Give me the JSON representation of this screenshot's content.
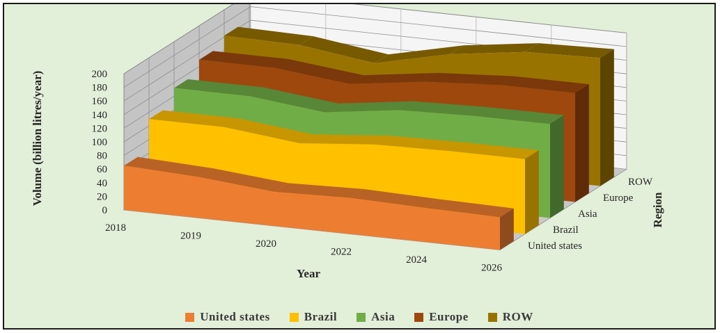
{
  "chart_data": {
    "type": "area",
    "variant": "3d-area",
    "title": "",
    "xlabel": "Year",
    "ylabel": "Volume (billion litres/year)",
    "zlabel": "Region",
    "ylim": [
      0,
      200
    ],
    "yticks": [
      "0",
      "20",
      "40",
      "60",
      "80",
      "100",
      "120",
      "140",
      "160",
      "180",
      "200"
    ],
    "categories": [
      "2018",
      "2019",
      "2020",
      "2022",
      "2024",
      "2026"
    ],
    "legend_position": "bottom",
    "grid": true,
    "series": [
      {
        "name": "United states",
        "color": "#ed7d31",
        "values": [
          65,
          60,
          50,
          53,
          50,
          48
        ]
      },
      {
        "name": "Brazil",
        "color": "#ffc000",
        "values": [
          110,
          110,
          98,
          108,
          110,
          110
        ]
      },
      {
        "name": "Asia",
        "color": "#70ad47",
        "values": [
          132,
          132,
          120,
          135,
          138,
          138
        ]
      },
      {
        "name": "Europe",
        "color": "#9e480e",
        "values": [
          150,
          150,
          138,
          153,
          160,
          160
        ]
      },
      {
        "name": "ROW",
        "color": "#997300",
        "values": [
          162,
          160,
          145,
          170,
          185,
          188
        ]
      }
    ]
  }
}
